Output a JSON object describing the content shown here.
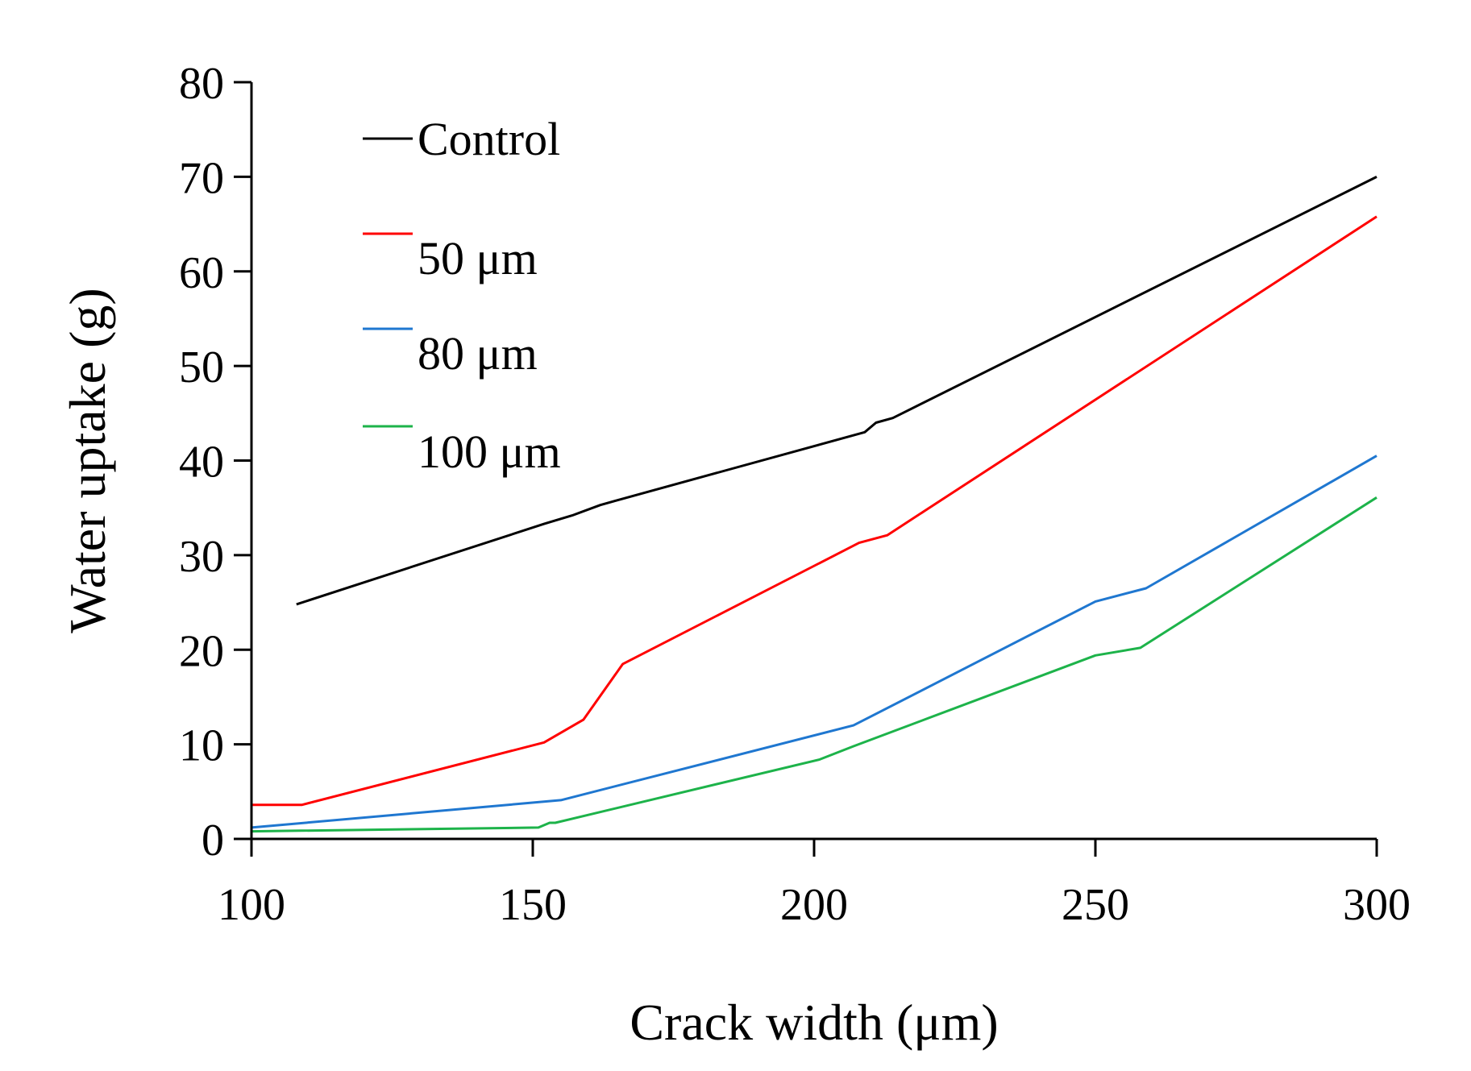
{
  "chart_data": {
    "type": "line",
    "title": "",
    "xlabel": "Crack width (μm)",
    "ylabel": "Water uptake (g)",
    "xlim": [
      100,
      300
    ],
    "ylim": [
      0,
      80
    ],
    "xticks": [
      100,
      150,
      200,
      250,
      300
    ],
    "yticks": [
      0,
      10,
      20,
      30,
      40,
      50,
      60,
      70,
      80
    ],
    "grid": false,
    "legend_position": "top-left",
    "series": [
      {
        "name": "Control",
        "color": "#000000",
        "x": [
          108,
          152,
          157,
          162,
          165,
          209,
          211,
          214,
          300
        ],
        "y": [
          24.8,
          33.3,
          34.2,
          35.3,
          35.8,
          43.0,
          44.0,
          44.5,
          70.0
        ]
      },
      {
        "name": "50 μm",
        "color": "#ff0000",
        "x": [
          100,
          109,
          152,
          159,
          166,
          208,
          213,
          300
        ],
        "y": [
          3.6,
          3.6,
          10.2,
          12.6,
          18.5,
          31.3,
          32.1,
          65.8
        ]
      },
      {
        "name": "80 μm",
        "color": "#1f77d0",
        "x": [
          100,
          155,
          207,
          250,
          259,
          300
        ],
        "y": [
          1.2,
          4.1,
          12.0,
          25.1,
          26.5,
          40.5
        ]
      },
      {
        "name": "100 μm",
        "color": "#1db34a",
        "x": [
          100,
          151,
          153,
          154,
          201,
          207,
          250,
          258,
          300
        ],
        "y": [
          0.8,
          1.2,
          1.7,
          1.7,
          8.4,
          9.8,
          19.4,
          20.2,
          36.1
        ]
      }
    ]
  }
}
